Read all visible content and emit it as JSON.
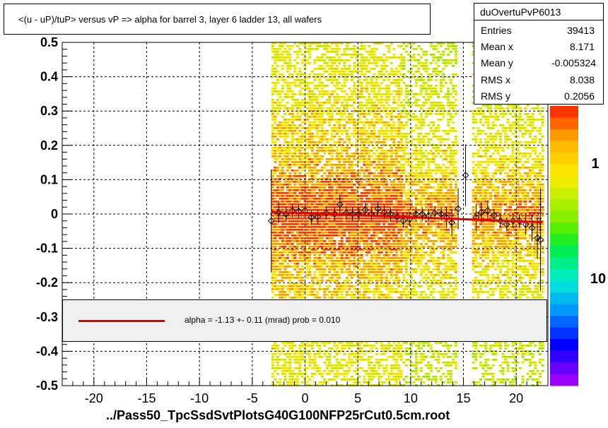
{
  "title": "<(u - uP)/tuP>  versus   vP => alpha for barrel 3, layer 6 ladder 13, all wafers",
  "stats": {
    "name": "duOvertuPvP6013",
    "rows": [
      {
        "label": "Entries",
        "value": "39413"
      },
      {
        "label": "Mean x",
        "value": "8.171"
      },
      {
        "label": "Mean y",
        "value": "-0.005324"
      },
      {
        "label": "RMS x",
        "value": "8.038"
      },
      {
        "label": "RMS y",
        "value": "0.2056"
      }
    ]
  },
  "fit_text": "alpha =   -1.13 +-  0.11 (mrad) prob = 0.010",
  "x_file_label": "../Pass50_TpcSsdSvtPlotsG40G100NFP25rCut0.5cm.root",
  "colors": {
    "fit_line": "#e00000",
    "fit_box_bg": "#f0f0f0",
    "markers": "#000000",
    "heat_low": "#9ae000",
    "heat_mid": "#f0e000",
    "heat_high": "#e84000"
  },
  "chart_data": {
    "type": "heatmap",
    "title": "<(u - uP)/tuP>  versus   vP => alpha for barrel 3, layer 6 ladder 13, all wafers",
    "xlabel": "../Pass50_TpcSsdSvtPlotsG40G100NFP25rCut0.5cm.root",
    "ylabel": "",
    "xlim": [
      -23,
      23
    ],
    "ylim": [
      -0.5,
      0.5
    ],
    "x_ticks": [
      -20,
      -15,
      -10,
      -5,
      0,
      5,
      10,
      15,
      20
    ],
    "y_ticks": [
      -0.5,
      -0.4,
      -0.3,
      -0.2,
      -0.1,
      0,
      0.1,
      0.2,
      0.3,
      0.4,
      0.5
    ],
    "y_tick_labels": [
      "-0.5",
      "-0.4",
      "-0.3",
      "-0.2",
      "-0.1",
      "0",
      "0.1",
      "0.2",
      "0.3",
      "0.4",
      "0.5"
    ],
    "grid": true,
    "color_scale": {
      "type": "log",
      "labels": [
        "1",
        "10"
      ],
      "top_label_partial": "0"
    },
    "occupied_x_ranges": [
      [
        -3.2,
        14.2
      ],
      [
        15.8,
        22.5
      ]
    ],
    "profile_points": {
      "x": [
        -3.2,
        -2.5,
        -1.8,
        -1.2,
        -0.6,
        0,
        0.6,
        1.2,
        2,
        2.8,
        3.3,
        3.9,
        4.5,
        5.1,
        5.7,
        6.3,
        6.9,
        7.5,
        8.1,
        8.7,
        9.3,
        9.9,
        10.5,
        11.1,
        11.7,
        12.3,
        12.9,
        13.4,
        13.9,
        14.5,
        15.2,
        16.2,
        16.7,
        17.3,
        17.9,
        18.5,
        19.1,
        19.7,
        20.3,
        20.9,
        21.5,
        22,
        22.3
      ],
      "y": [
        -0.02,
        0.005,
        0.0,
        0.01,
        0.008,
        0.01,
        -0.01,
        -0.008,
        0.003,
        0.0,
        0.028,
        0.003,
        0.0,
        0.0,
        0.012,
        0.0,
        0.015,
        0.005,
        0.0,
        -0.008,
        -0.02,
        -0.015,
        0.0,
        0.0,
        -0.005,
        0.003,
        0.0,
        -0.01,
        -0.025,
        0.015,
        0.113,
        -0.01,
        0.005,
        0.01,
        -0.005,
        -0.02,
        -0.03,
        -0.02,
        -0.02,
        -0.03,
        -0.04,
        -0.07,
        -0.075
      ],
      "y_err": [
        0.15,
        0.03,
        0.02,
        0.02,
        0.02,
        0.02,
        0.02,
        0.02,
        0.02,
        0.02,
        0.03,
        0.02,
        0.02,
        0.02,
        0.02,
        0.02,
        0.02,
        0.02,
        0.02,
        0.02,
        0.02,
        0.02,
        0.02,
        0.02,
        0.02,
        0.02,
        0.02,
        0.03,
        0.04,
        0.06,
        0.09,
        0.04,
        0.03,
        0.03,
        0.02,
        0.02,
        0.02,
        0.02,
        0.02,
        0.03,
        0.04,
        0.06,
        0.15
      ]
    },
    "fit_line": {
      "x": [
        -3.2,
        22.5
      ],
      "y": [
        0.006,
        -0.024
      ]
    }
  }
}
